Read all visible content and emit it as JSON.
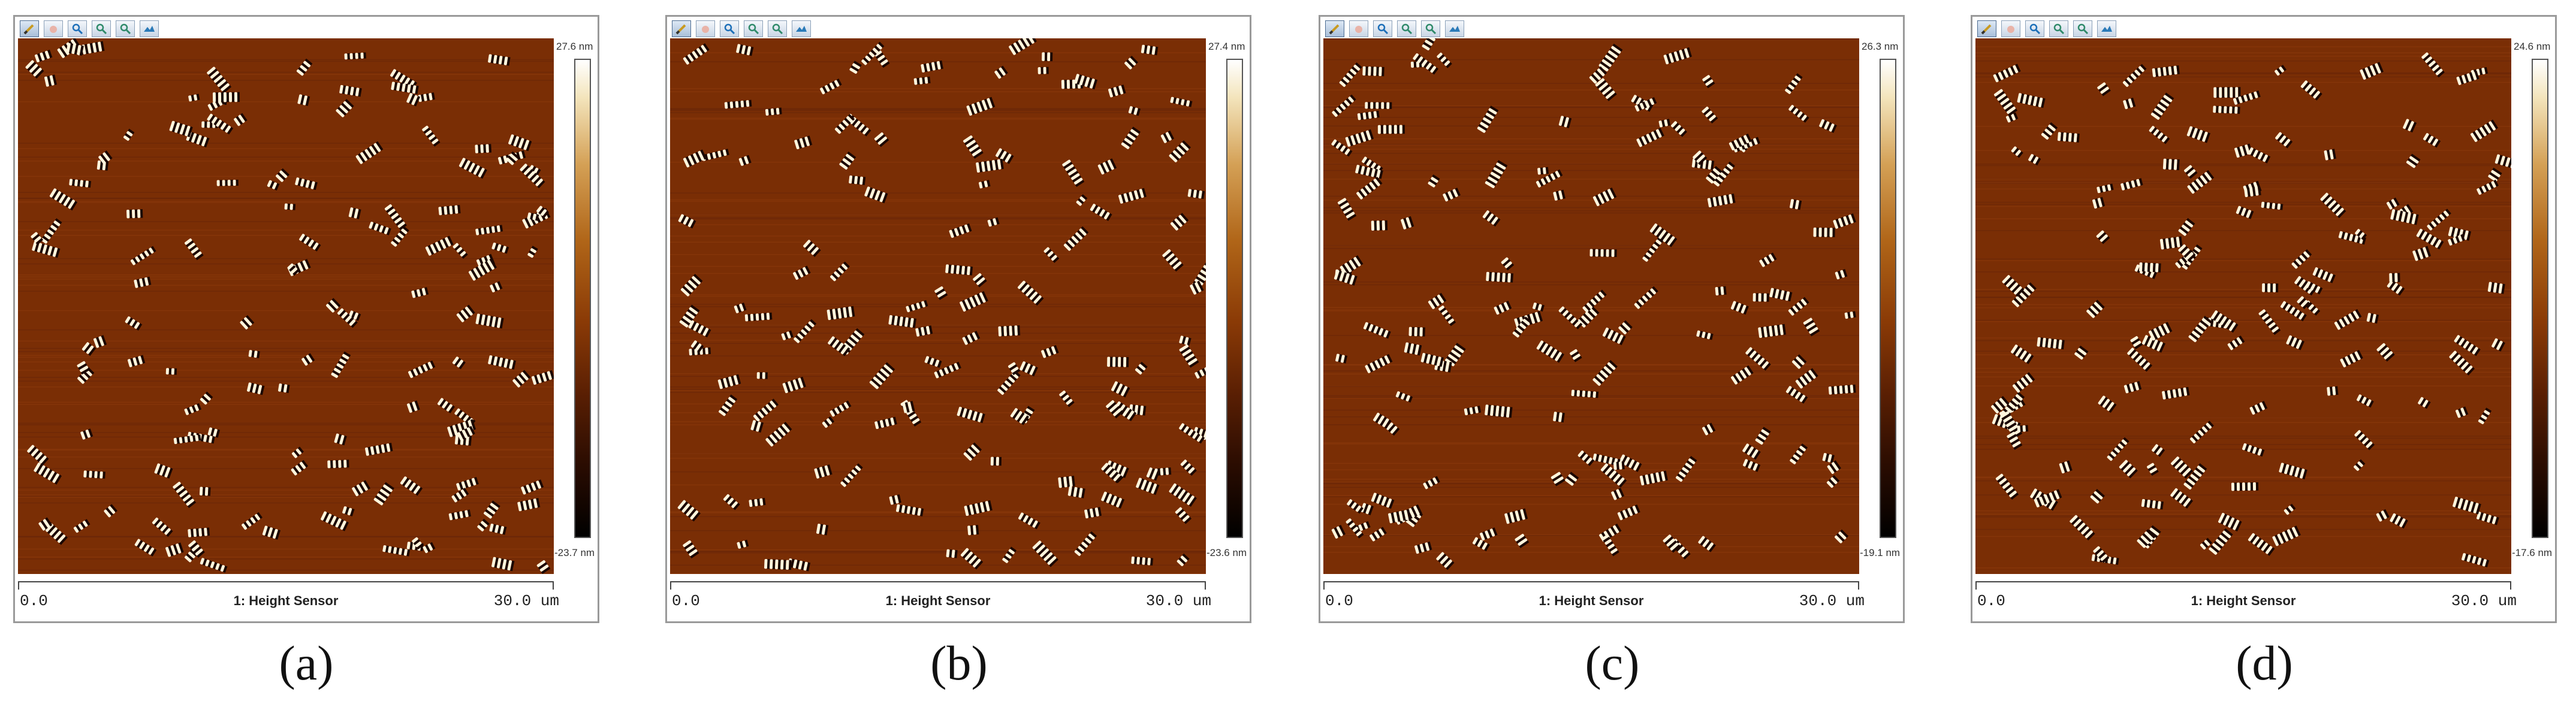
{
  "toolbar": {
    "icons": [
      "select-tool-icon",
      "hand-tool-icon",
      "zoom-in-icon",
      "zoom-out-icon",
      "zoom-fit-icon",
      "section-tool-icon"
    ]
  },
  "panels": [
    {
      "id": "a",
      "caption": "(a)",
      "colorbar_max": "27.6 nm",
      "colorbar_min": "-23.7 nm",
      "channel": "1: Height Sensor",
      "axis_start": "0.0",
      "axis_end": "30.0 um"
    },
    {
      "id": "b",
      "caption": "(b)",
      "colorbar_max": "27.4 nm",
      "colorbar_min": "-23.6 nm",
      "channel": "1: Height Sensor",
      "axis_start": "0.0",
      "axis_end": "30.0 um"
    },
    {
      "id": "c",
      "caption": "(c)",
      "colorbar_max": "26.3 nm",
      "colorbar_min": "-19.1 nm",
      "channel": "1: Height Sensor",
      "axis_start": "0.0",
      "axis_end": "30.0 um"
    },
    {
      "id": "d",
      "caption": "(d)",
      "colorbar_max": "24.6 nm",
      "colorbar_min": "-17.6 nm",
      "channel": "1: Height Sensor",
      "axis_start": "0.0",
      "axis_end": "30.0 um"
    }
  ],
  "colors": {
    "background_substrate": "#7a2e05",
    "feature_highlight": "#ffffff",
    "feature_shadow": "#1a0600"
  }
}
